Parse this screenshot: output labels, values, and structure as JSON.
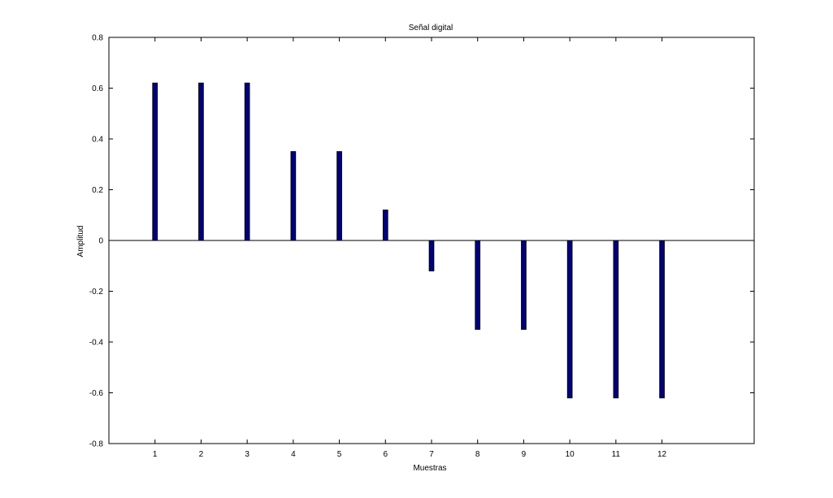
{
  "chart_data": {
    "type": "bar",
    "title": "Señal digital",
    "xlabel": "Muestras",
    "ylabel": "Amplitud",
    "categories": [
      "1",
      "2",
      "3",
      "4",
      "5",
      "6",
      "7",
      "8",
      "9",
      "10",
      "11",
      "12"
    ],
    "x": [
      1,
      2,
      3,
      4,
      5,
      6,
      7,
      8,
      9,
      10,
      11,
      12
    ],
    "values": [
      0.62,
      0.62,
      0.62,
      0.35,
      0.35,
      0.12,
      -0.12,
      -0.35,
      -0.35,
      -0.62,
      -0.62,
      -0.62
    ],
    "xlim": [
      0,
      14
    ],
    "ylim": [
      -0.8,
      0.8
    ],
    "yticks": [
      -0.8,
      -0.6,
      -0.4,
      -0.2,
      0,
      0.2,
      0.4,
      0.6,
      0.8
    ],
    "ytick_labels": [
      "-0.8",
      "-0.6",
      "-0.4",
      "-0.2",
      "0",
      "0.2",
      "0.4",
      "0.6",
      "0.8"
    ],
    "bar_color": "#000080",
    "grid": false,
    "zero_line": true
  }
}
